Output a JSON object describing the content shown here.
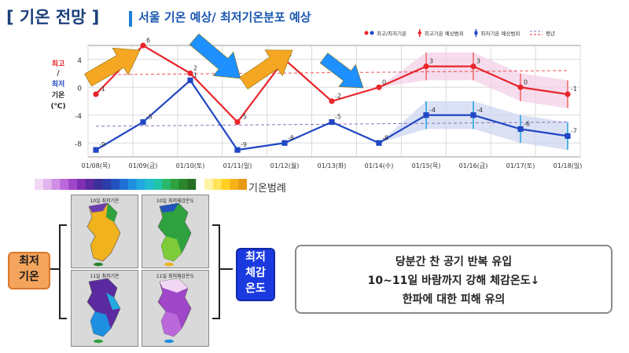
{
  "header": {
    "title": "[ 기온 전망 ]",
    "subtitle": "서울 기온 예상/ 최저기온분포 예상"
  },
  "colors": {
    "max_line": "#e8262b",
    "min_line": "#2147c4",
    "avg_line": "#8a6fb8",
    "max_band": "#f3d0e6",
    "min_band": "#cfd7f0",
    "arrow_orange": "#f5a623",
    "arrow_blue": "#1e90ff"
  },
  "chart_data": {
    "type": "line",
    "categories": [
      "01/08(목)",
      "01/09(금)",
      "01/10(토)",
      "01/11(일)",
      "01/12(월)",
      "01/13(화)",
      "01/14(수)",
      "01/15(목)",
      "01/16(금)",
      "01/17(토)",
      "01/18(일)"
    ],
    "ylim": [
      -10,
      6
    ],
    "yticks": [
      4,
      0,
      -4,
      -8
    ],
    "y_axis_labels": {
      "max": "최고",
      "slash": "/",
      "min": "최저",
      "temp": "기온",
      "unit": "(℃)"
    },
    "legend": [
      {
        "label": "최고/최저기온",
        "icon": "red-blue-dots"
      },
      {
        "label": "최고기온 예상범위",
        "icon": "red-error-bar"
      },
      {
        "label": "최저기온 예상범위",
        "icon": "blue-error-bar"
      },
      {
        "label": "평년",
        "icon": "dashed-lines"
      }
    ],
    "series": [
      {
        "name": "최고기온",
        "values": [
          -1,
          6,
          2,
          -5,
          4,
          -2,
          0,
          3,
          3,
          0,
          -1
        ],
        "labels": [
          "-1",
          "6",
          "2",
          "-5",
          "4",
          "-2",
          "0",
          "3",
          "3",
          "0",
          "-1"
        ],
        "range_low": [
          null,
          null,
          null,
          null,
          null,
          null,
          null,
          1,
          1,
          -2,
          -3
        ],
        "range_high": [
          null,
          null,
          null,
          null,
          null,
          null,
          null,
          5,
          5,
          2,
          1
        ]
      },
      {
        "name": "최저기온",
        "values": [
          -9,
          -5,
          1,
          -9,
          -8,
          -5,
          -8,
          -4,
          -4,
          -6,
          -7
        ],
        "labels": [
          "-9",
          "-5",
          "1",
          "-9",
          "-8",
          "-5",
          "-8",
          "-4",
          "-4",
          "-6",
          "-7"
        ],
        "range_low": [
          null,
          null,
          null,
          null,
          null,
          null,
          null,
          -6,
          -6,
          -8,
          -9
        ],
        "range_high": [
          null,
          null,
          null,
          null,
          null,
          null,
          null,
          -2,
          -2,
          -4,
          -5
        ]
      }
    ],
    "normal_max": [
      1.8,
      2.4
    ],
    "normal_min": [
      -5.6,
      -5.0
    ],
    "grid": true
  },
  "legend_scale": {
    "label": "기온범례",
    "colors": [
      "#f2d7f5",
      "#e3b5ef",
      "#d08ee6",
      "#bb69da",
      "#9f46c9",
      "#7e2fb5",
      "#5c2aa0",
      "#3b2f9a",
      "#2b3da8",
      "#2453bf",
      "#1e6fd4",
      "#1f8fe0",
      "#22a9df",
      "#23bdd0",
      "#20c4a9",
      "#2ab86a",
      "#2fa23f",
      "#2a852d",
      "#256e23",
      "#ffffff",
      "#fff3a6",
      "#ffe35a",
      "#ffcf24",
      "#f7b21a",
      "#e69a16"
    ]
  },
  "maps": {
    "tl_title": "10일 최저기온",
    "tr_title": "10일 최저체감온도",
    "bl_title": "11일 최저기온",
    "br_title": "11일 최저체감온도"
  },
  "labels": {
    "min_temp_line1": "최저",
    "min_temp_line2": "기온",
    "chill_line1": "최저",
    "chill_line2": "체감",
    "chill_line3": "온도"
  },
  "message": {
    "line1": "당분간 찬 공기 반복 유입",
    "line2": "10~11일 바람까지 강해 체감온도↓",
    "line3": "한파에 대한 피해 유의"
  }
}
